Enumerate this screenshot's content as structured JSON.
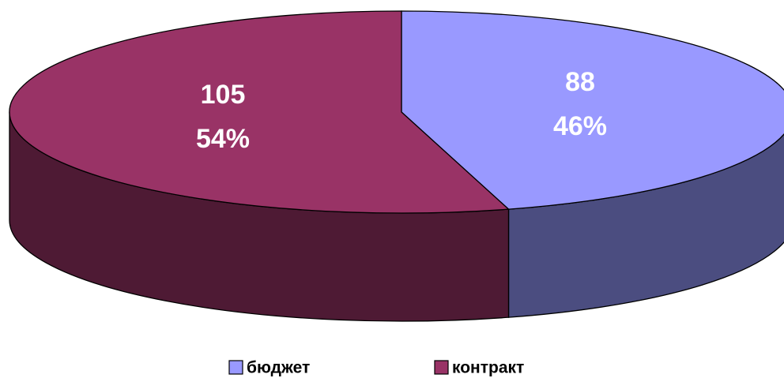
{
  "chart_data": {
    "type": "pie",
    "categories": [
      "бюджет",
      "контракт"
    ],
    "values": [
      88,
      105
    ],
    "percentages": [
      46,
      54
    ],
    "percentage_labels": [
      "46%",
      "54%"
    ],
    "colors": [
      "#9999ff",
      "#993366"
    ],
    "side_colors": [
      "#4b4d80",
      "#4e1a34"
    ],
    "legend": "bottom"
  }
}
